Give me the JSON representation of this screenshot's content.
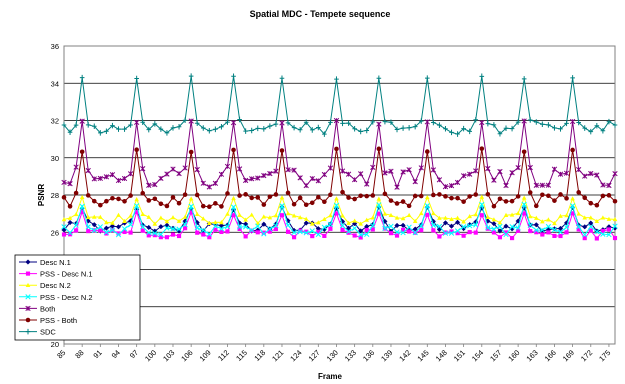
{
  "chart_data": {
    "type": "line",
    "title": "Spatial MDC - Tempete sequence",
    "xlabel": "Frame",
    "ylabel": "PSNR",
    "ylim": [
      20,
      36
    ],
    "yticks": [
      20,
      22,
      24,
      26,
      28,
      30,
      32,
      34,
      36
    ],
    "xlim": [
      85,
      176
    ],
    "xtick_labels": [
      "85",
      "88",
      "91",
      "94",
      "97",
      "100",
      "103",
      "106",
      "109",
      "112",
      "115",
      "118",
      "121",
      "124",
      "127",
      "130",
      "133",
      "136",
      "139",
      "142",
      "145",
      "148",
      "151",
      "154",
      "157",
      "160",
      "163",
      "166",
      "169",
      "172",
      "175"
    ],
    "grid": "horizontal",
    "legend_position": "lower-left",
    "peak_frames": [
      88,
      97,
      106,
      113,
      121,
      130,
      137,
      145,
      154,
      161,
      169
    ],
    "series": [
      {
        "name": "Desc N.1",
        "color": "#000080",
        "marker": "diamond",
        "base": 26.3,
        "peak": 27.3,
        "amplitude": 0.25
      },
      {
        "name": "PSS - Desc N.1",
        "color": "#ff00ff",
        "marker": "square",
        "base": 25.9,
        "peak": 27.0,
        "amplitude": 0.25
      },
      {
        "name": "Desc N.2",
        "color": "#ffff00",
        "marker": "triangle",
        "base": 26.7,
        "peak": 27.8,
        "amplitude": 0.25
      },
      {
        "name": "PSS - Desc N.2",
        "color": "#00ffff",
        "marker": "x",
        "base": 26.1,
        "peak": 27.4,
        "amplitude": 0.25
      },
      {
        "name": "Both",
        "color": "#800080",
        "marker": "star",
        "base": 28.9,
        "peak": 31.9,
        "amplitude": 0.5
      },
      {
        "name": "PSS - Both",
        "color": "#800000",
        "marker": "circle",
        "base": 27.7,
        "peak": 30.4,
        "amplitude": 0.35
      },
      {
        "name": "SDC",
        "color": "#008080",
        "marker": "plus",
        "base": 31.6,
        "peak": 34.3,
        "amplitude": 0.35
      }
    ]
  }
}
